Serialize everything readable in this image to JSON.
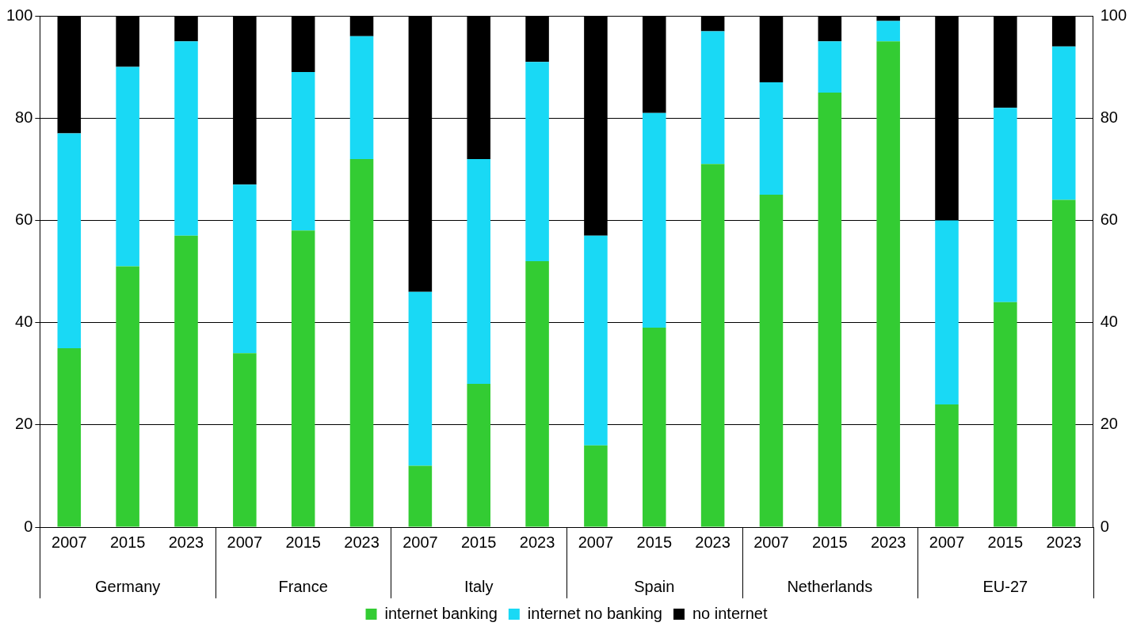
{
  "chart_data": {
    "type": "bar",
    "stacked": true,
    "categories": [
      "2007",
      "2015",
      "2023",
      "2007",
      "2015",
      "2023",
      "2007",
      "2015",
      "2023",
      "2007",
      "2015",
      "2023",
      "2007",
      "2015",
      "2023",
      "2007",
      "2015",
      "2023"
    ],
    "annotations": [
      "Germany",
      "France",
      "Italy",
      "Spain",
      "Netherlands",
      "EU-27"
    ],
    "series": [
      {
        "name": "internet banking",
        "color": "#33cc33",
        "values": [
          35,
          51,
          57,
          34,
          58,
          72,
          12,
          28,
          52,
          16,
          39,
          71,
          65,
          85,
          95,
          24,
          44,
          64
        ]
      },
      {
        "name": "internet no banking",
        "color": "#19d9f5",
        "values": [
          42,
          39,
          38,
          33,
          31,
          24,
          34,
          44,
          39,
          41,
          42,
          26,
          22,
          10,
          4,
          36,
          38,
          30
        ]
      },
      {
        "name": "no internet",
        "color": "#000000",
        "values": [
          23,
          10,
          5,
          33,
          11,
          4,
          54,
          28,
          9,
          43,
          19,
          3,
          13,
          5,
          1,
          40,
          18,
          6
        ]
      }
    ],
    "ylim": [
      0,
      100
    ],
    "yticks": [
      0,
      20,
      40,
      60,
      80,
      100
    ],
    "y2lim": [
      0,
      100
    ],
    "y2ticks": [
      0,
      20,
      40,
      60,
      80,
      100
    ],
    "grid": "y",
    "legend": "bottom"
  }
}
